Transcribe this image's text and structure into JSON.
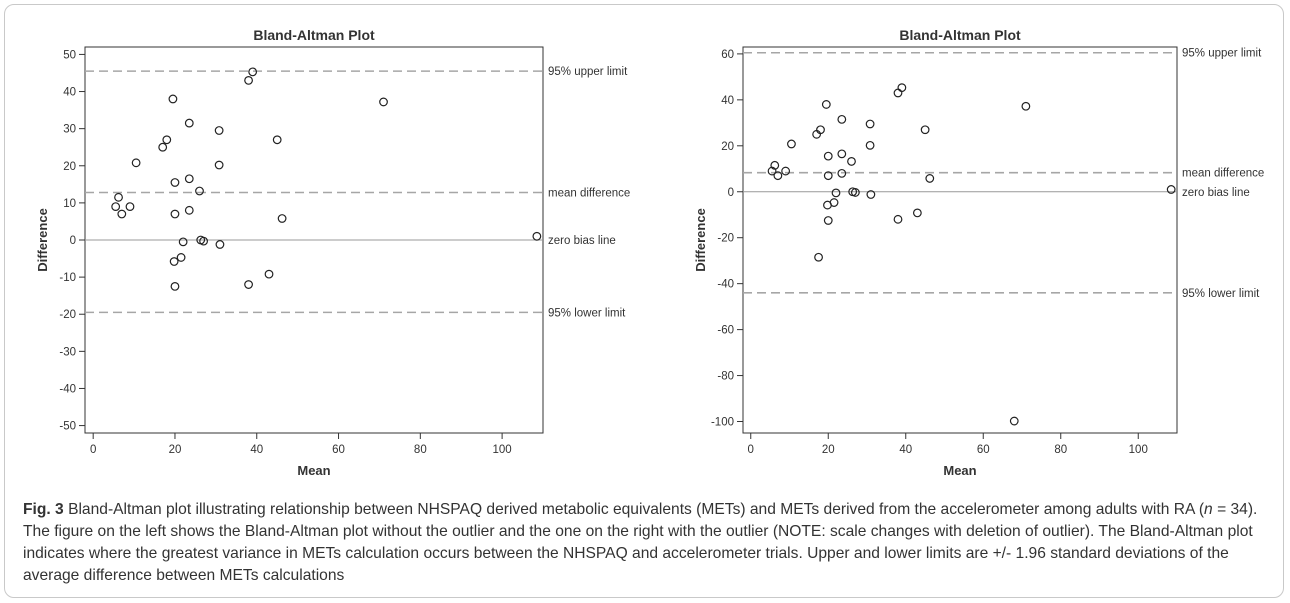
{
  "colors": {
    "axis": "#333333",
    "limit_line": "#a6a6a6",
    "zero_line": "#999999",
    "point": "#222222",
    "caption_text": "#333333"
  },
  "caption": {
    "fig_label": "Fig. 3",
    "text_pre": " Bland-Altman plot illustrating relationship between NHSPAQ derived metabolic equivalents (METs) and METs derived from the accelerometer among adults with RA (",
    "n_symbol": "n",
    "text_post": " = 34). The figure on the left shows the Bland-Altman plot without the outlier and the one on the right with the outlier (NOTE: scale changes with deletion of outlier). The Bland-Altman plot indicates where the greatest variance in METs calculation occurs between the NHSPAQ and accelerometer trials. Upper and lower limits are +/- 1.96 standard deviations of the average difference between METs calculations"
  },
  "chart_data": [
    {
      "type": "scatter",
      "title": "Bland-Altman Plot",
      "xlabel": "Mean",
      "ylabel": "Difference",
      "xlim": [
        -2,
        110
      ],
      "ylim": [
        -52,
        52
      ],
      "xticks": [
        0,
        20,
        40,
        60,
        80,
        100
      ],
      "yticks": [
        -50,
        -40,
        -30,
        -20,
        -10,
        0,
        10,
        20,
        30,
        40,
        50
      ],
      "grid": false,
      "reference_lines": [
        {
          "label": "95% upper limit",
          "y": 45.5,
          "style": "dashed"
        },
        {
          "label": "mean difference",
          "y": 12.8,
          "style": "dashed"
        },
        {
          "label": "zero bias line",
          "y": 0,
          "style": "solid"
        },
        {
          "label": "95% lower limit",
          "y": -19.5,
          "style": "dashed"
        }
      ],
      "points": [
        {
          "x": 5.5,
          "y": 9.0
        },
        {
          "x": 6.2,
          "y": 11.5
        },
        {
          "x": 7.0,
          "y": 7.0
        },
        {
          "x": 9.0,
          "y": 9.0
        },
        {
          "x": 10.5,
          "y": 20.8
        },
        {
          "x": 17.0,
          "y": 25.0
        },
        {
          "x": 18.0,
          "y": 27.0
        },
        {
          "x": 19.5,
          "y": 38.0
        },
        {
          "x": 19.8,
          "y": -5.8
        },
        {
          "x": 20.0,
          "y": 15.5
        },
        {
          "x": 20.0,
          "y": 7.0
        },
        {
          "x": 20.0,
          "y": -12.5
        },
        {
          "x": 21.5,
          "y": -4.7
        },
        {
          "x": 22.0,
          "y": -0.5
        },
        {
          "x": 23.5,
          "y": 31.5
        },
        {
          "x": 23.5,
          "y": 16.5
        },
        {
          "x": 23.5,
          "y": 8.0
        },
        {
          "x": 26.0,
          "y": 13.2
        },
        {
          "x": 26.3,
          "y": 0.0
        },
        {
          "x": 27.0,
          "y": -0.3
        },
        {
          "x": 30.8,
          "y": 29.5
        },
        {
          "x": 30.8,
          "y": 20.2
        },
        {
          "x": 31.0,
          "y": -1.2
        },
        {
          "x": 38.0,
          "y": 43.0
        },
        {
          "x": 38.0,
          "y": -12.0
        },
        {
          "x": 39.0,
          "y": 45.3
        },
        {
          "x": 43.0,
          "y": -9.2
        },
        {
          "x": 45.0,
          "y": 27.0
        },
        {
          "x": 46.2,
          "y": 5.8
        },
        {
          "x": 71.0,
          "y": 37.2
        },
        {
          "x": 108.5,
          "y": 1.0
        }
      ]
    },
    {
      "type": "scatter",
      "title": "Bland-Altman Plot",
      "xlabel": "Mean",
      "ylabel": "Difference",
      "xlim": [
        -2,
        110
      ],
      "ylim": [
        -105,
        63
      ],
      "xticks": [
        0,
        20,
        40,
        60,
        80,
        100
      ],
      "yticks": [
        -100,
        -80,
        -60,
        -40,
        -20,
        0,
        20,
        40,
        60
      ],
      "grid": false,
      "reference_lines": [
        {
          "label": "95% upper limit",
          "y": 60.5,
          "style": "dashed"
        },
        {
          "label": "mean difference",
          "y": 8.3,
          "style": "dashed"
        },
        {
          "label": "zero bias line",
          "y": 0,
          "style": "solid"
        },
        {
          "label": "95% lower limit",
          "y": -44,
          "style": "dashed"
        }
      ],
      "points": [
        {
          "x": 5.5,
          "y": 9.0
        },
        {
          "x": 6.2,
          "y": 11.5
        },
        {
          "x": 7.0,
          "y": 7.0
        },
        {
          "x": 9.0,
          "y": 9.0
        },
        {
          "x": 10.5,
          "y": 20.8
        },
        {
          "x": 17.0,
          "y": 25.0
        },
        {
          "x": 17.5,
          "y": -28.5
        },
        {
          "x": 18.0,
          "y": 27.0
        },
        {
          "x": 19.5,
          "y": 38.0
        },
        {
          "x": 19.8,
          "y": -5.8
        },
        {
          "x": 20.0,
          "y": 15.5
        },
        {
          "x": 20.0,
          "y": 7.0
        },
        {
          "x": 20.0,
          "y": -12.5
        },
        {
          "x": 21.5,
          "y": -4.7
        },
        {
          "x": 22.0,
          "y": -0.5
        },
        {
          "x": 23.5,
          "y": 31.5
        },
        {
          "x": 23.5,
          "y": 16.5
        },
        {
          "x": 23.5,
          "y": 8.0
        },
        {
          "x": 26.0,
          "y": 13.2
        },
        {
          "x": 26.3,
          "y": 0.0
        },
        {
          "x": 27.0,
          "y": -0.3
        },
        {
          "x": 30.8,
          "y": 29.5
        },
        {
          "x": 30.8,
          "y": 20.2
        },
        {
          "x": 31.0,
          "y": -1.2
        },
        {
          "x": 38.0,
          "y": 43.0
        },
        {
          "x": 38.0,
          "y": -12.0
        },
        {
          "x": 39.0,
          "y": 45.3
        },
        {
          "x": 43.0,
          "y": -9.2
        },
        {
          "x": 45.0,
          "y": 27.0
        },
        {
          "x": 46.2,
          "y": 5.8
        },
        {
          "x": 68.0,
          "y": -99.8
        },
        {
          "x": 71.0,
          "y": 37.2
        },
        {
          "x": 108.5,
          "y": 1.0
        }
      ]
    }
  ]
}
